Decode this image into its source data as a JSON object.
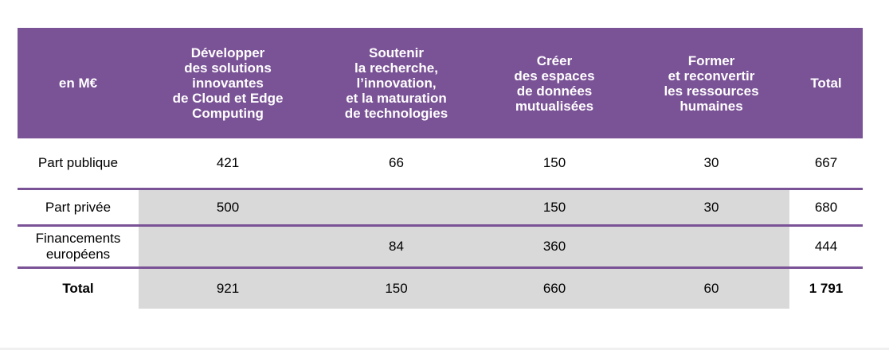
{
  "table": {
    "header": {
      "corner": "en M€",
      "columns": [
        "Développer\ndes solutions\ninnovantes\nde Cloud et Edge\nComputing",
        "Soutenir\nla recherche,\nl’innovation,\net la maturation\nde technologies",
        "Créer\ndes espaces\nde données\nmutualisées",
        "Former\net reconvertir\nles ressources\nhumaines",
        "Total"
      ]
    },
    "rows": [
      {
        "label": "Part publique",
        "cells": [
          "421",
          "66",
          "150",
          "30",
          "667"
        ]
      },
      {
        "label": "Part privée",
        "cells": [
          "500",
          "",
          "150",
          "30",
          "680"
        ]
      },
      {
        "label": "Financements\neuropéens",
        "cells": [
          "",
          "84",
          "360",
          "",
          "444"
        ]
      },
      {
        "label": "Total",
        "cells": [
          "921",
          "150",
          "660",
          "60",
          "1 791"
        ]
      }
    ]
  },
  "colors": {
    "header_bg": "#7a5296",
    "row_separator": "#7a5296",
    "shaded_cells": "#d9d9d9"
  }
}
